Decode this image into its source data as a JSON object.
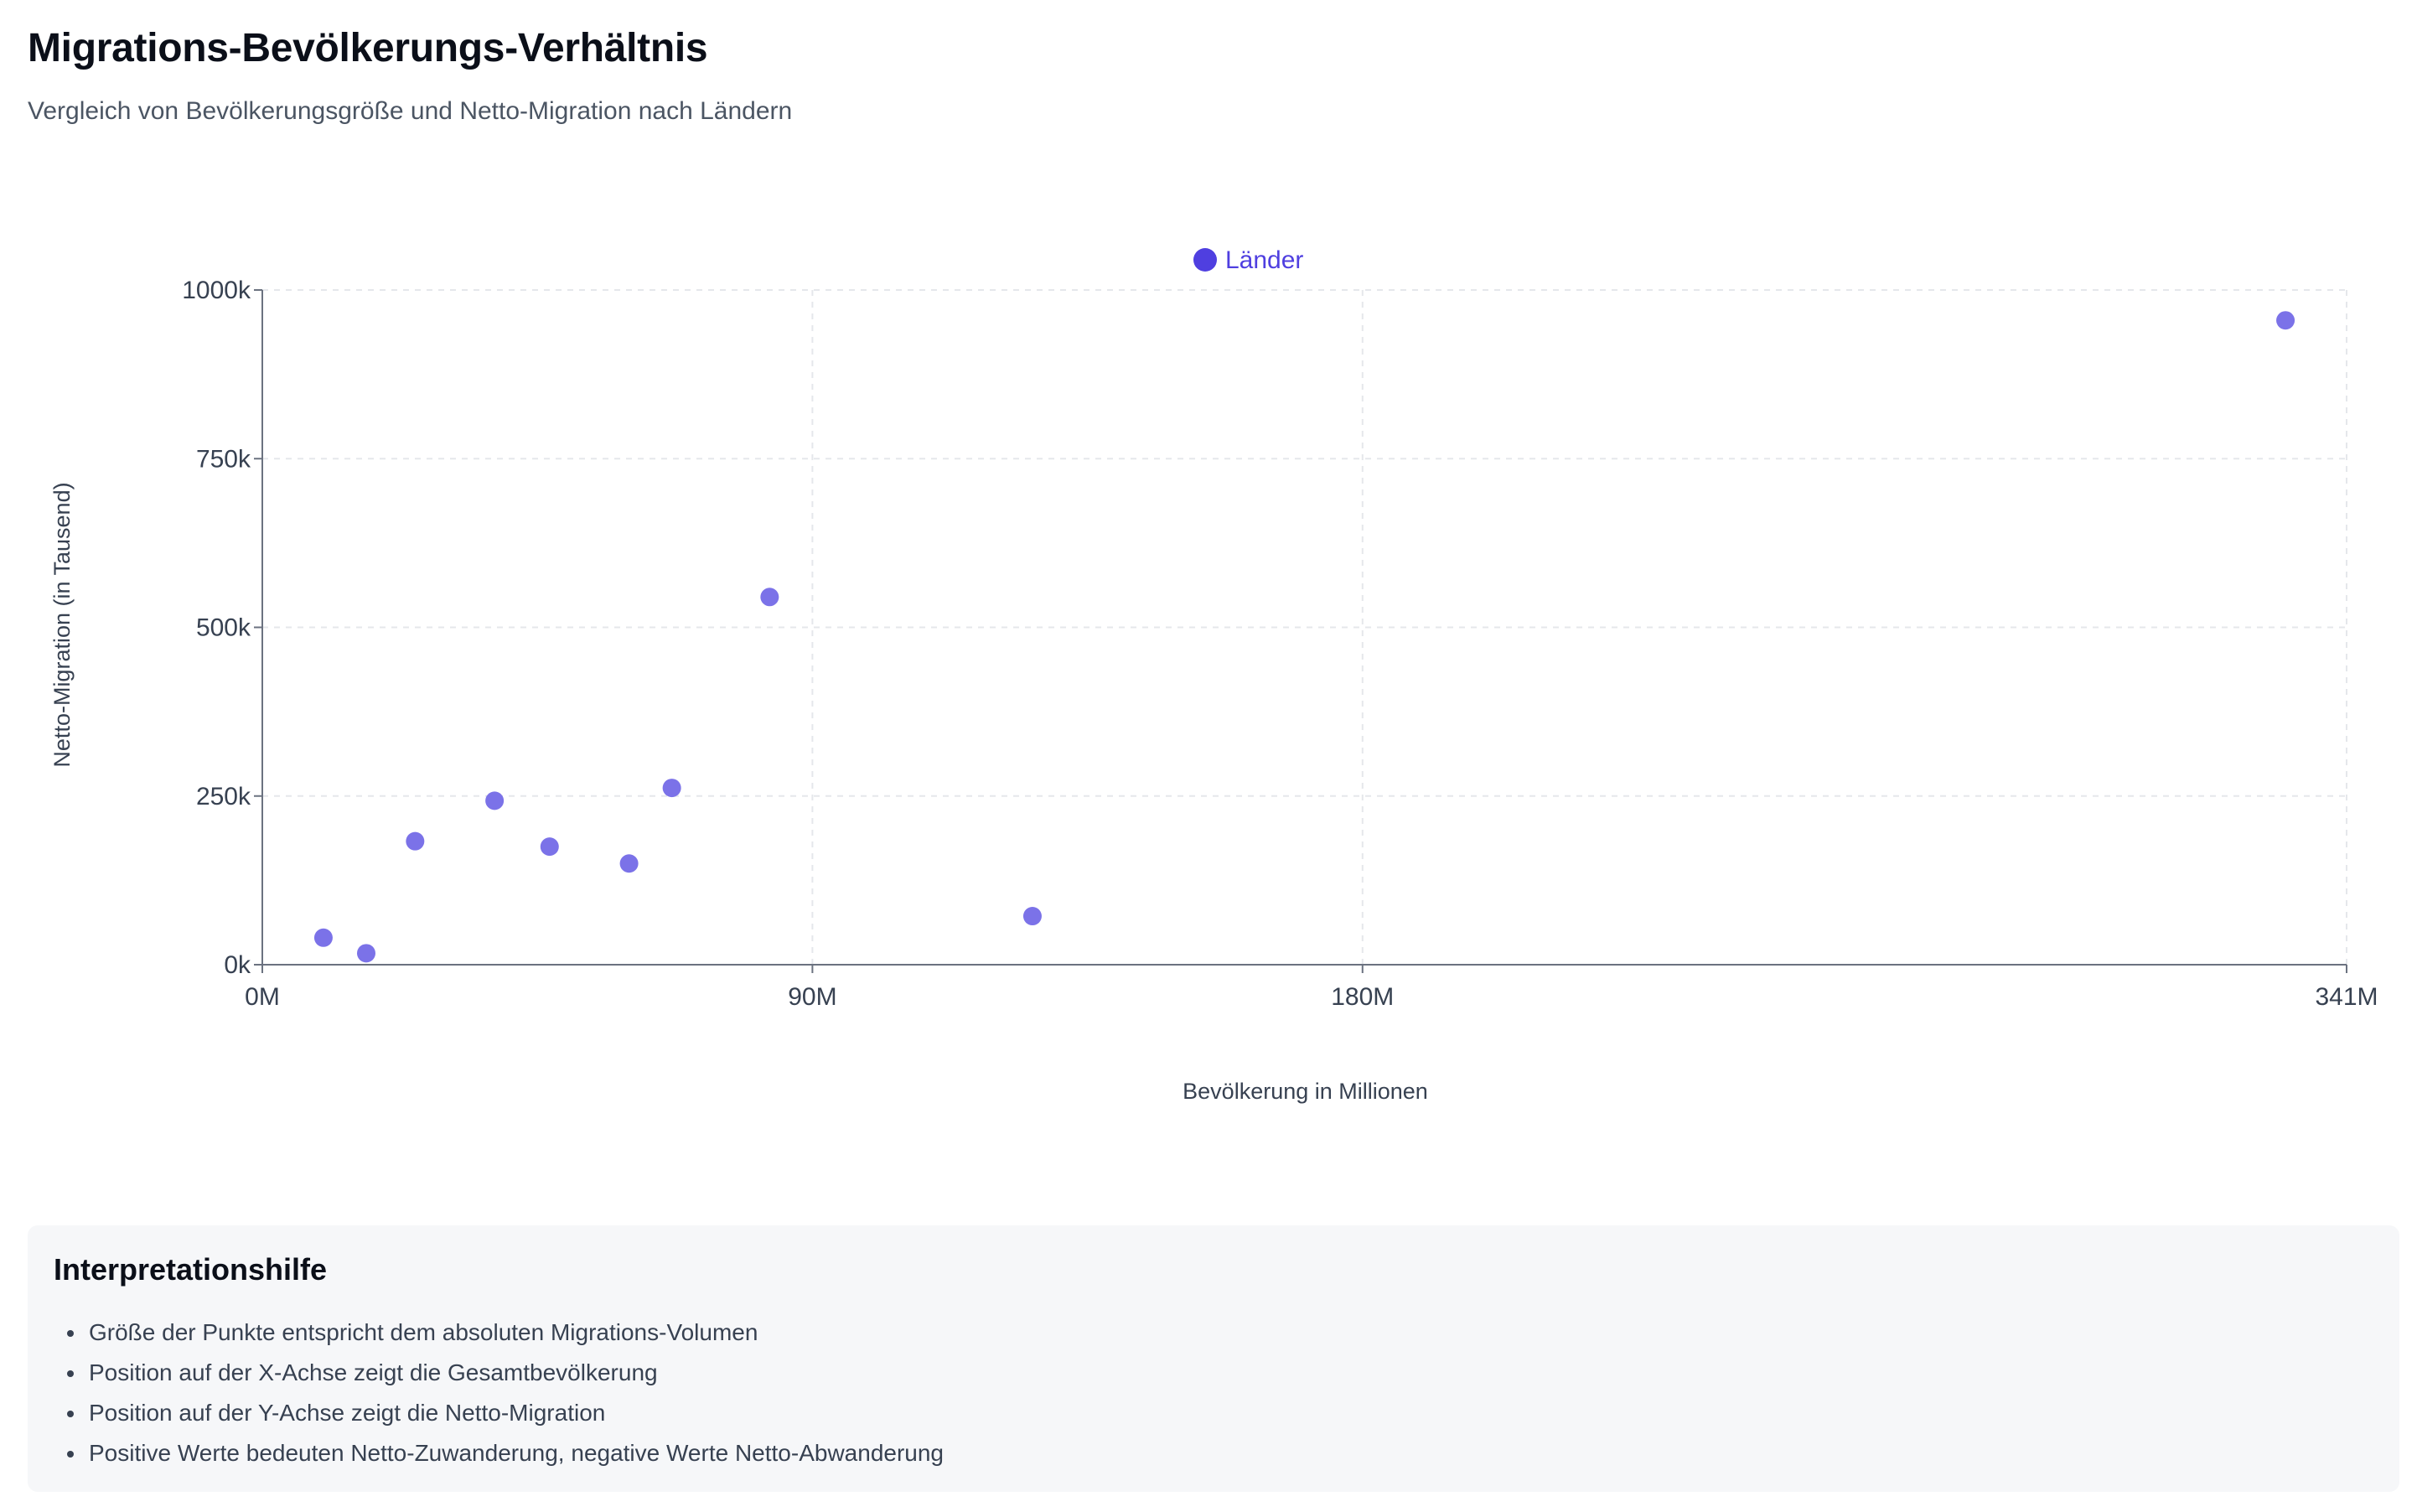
{
  "header": {
    "title": "Migrations-Bevölkerungs-Verhältnis",
    "subtitle": "Vergleich von Bevölkerungsgröße und Netto-Migration nach Ländern"
  },
  "chart_data": {
    "type": "scatter",
    "title": "",
    "xlabel": "Bevölkerung in Millionen",
    "ylabel": "Netto-Migration (in Tausend)",
    "xlim": [
      0,
      341
    ],
    "ylim": [
      0,
      1000
    ],
    "x_ticks": [
      {
        "value": 0,
        "label": "0M"
      },
      {
        "value": 90,
        "label": "90M"
      },
      {
        "value": 180,
        "label": "180M"
      },
      {
        "value": 341,
        "label": "341M"
      }
    ],
    "y_ticks": [
      {
        "value": 0,
        "label": "0k"
      },
      {
        "value": 250,
        "label": "250k"
      },
      {
        "value": 500,
        "label": "500k"
      },
      {
        "value": 750,
        "label": "750k"
      },
      {
        "value": 1000,
        "label": "1000k"
      }
    ],
    "grid": true,
    "legend_position": "top",
    "series": [
      {
        "name": "Länder",
        "color": "#7b72e8",
        "legend_color": "#4f3fe0",
        "points": [
          {
            "x": 10,
            "y": 40
          },
          {
            "x": 17,
            "y": 17
          },
          {
            "x": 25,
            "y": 183
          },
          {
            "x": 38,
            "y": 243
          },
          {
            "x": 47,
            "y": 175
          },
          {
            "x": 60,
            "y": 150
          },
          {
            "x": 67,
            "y": 262
          },
          {
            "x": 83,
            "y": 545
          },
          {
            "x": 126,
            "y": 72
          },
          {
            "x": 331,
            "y": 955
          }
        ]
      }
    ]
  },
  "info": {
    "title": "Interpretationshilfe",
    "items": [
      "Größe der Punkte entspricht dem absoluten Migrations-Volumen",
      "Position auf der X-Achse zeigt die Gesamtbevölkerung",
      "Position auf der Y-Achse zeigt die Netto-Migration",
      "Positive Werte bedeuten Netto-Zuwanderung, negative Werte Netto-Abwanderung"
    ]
  }
}
